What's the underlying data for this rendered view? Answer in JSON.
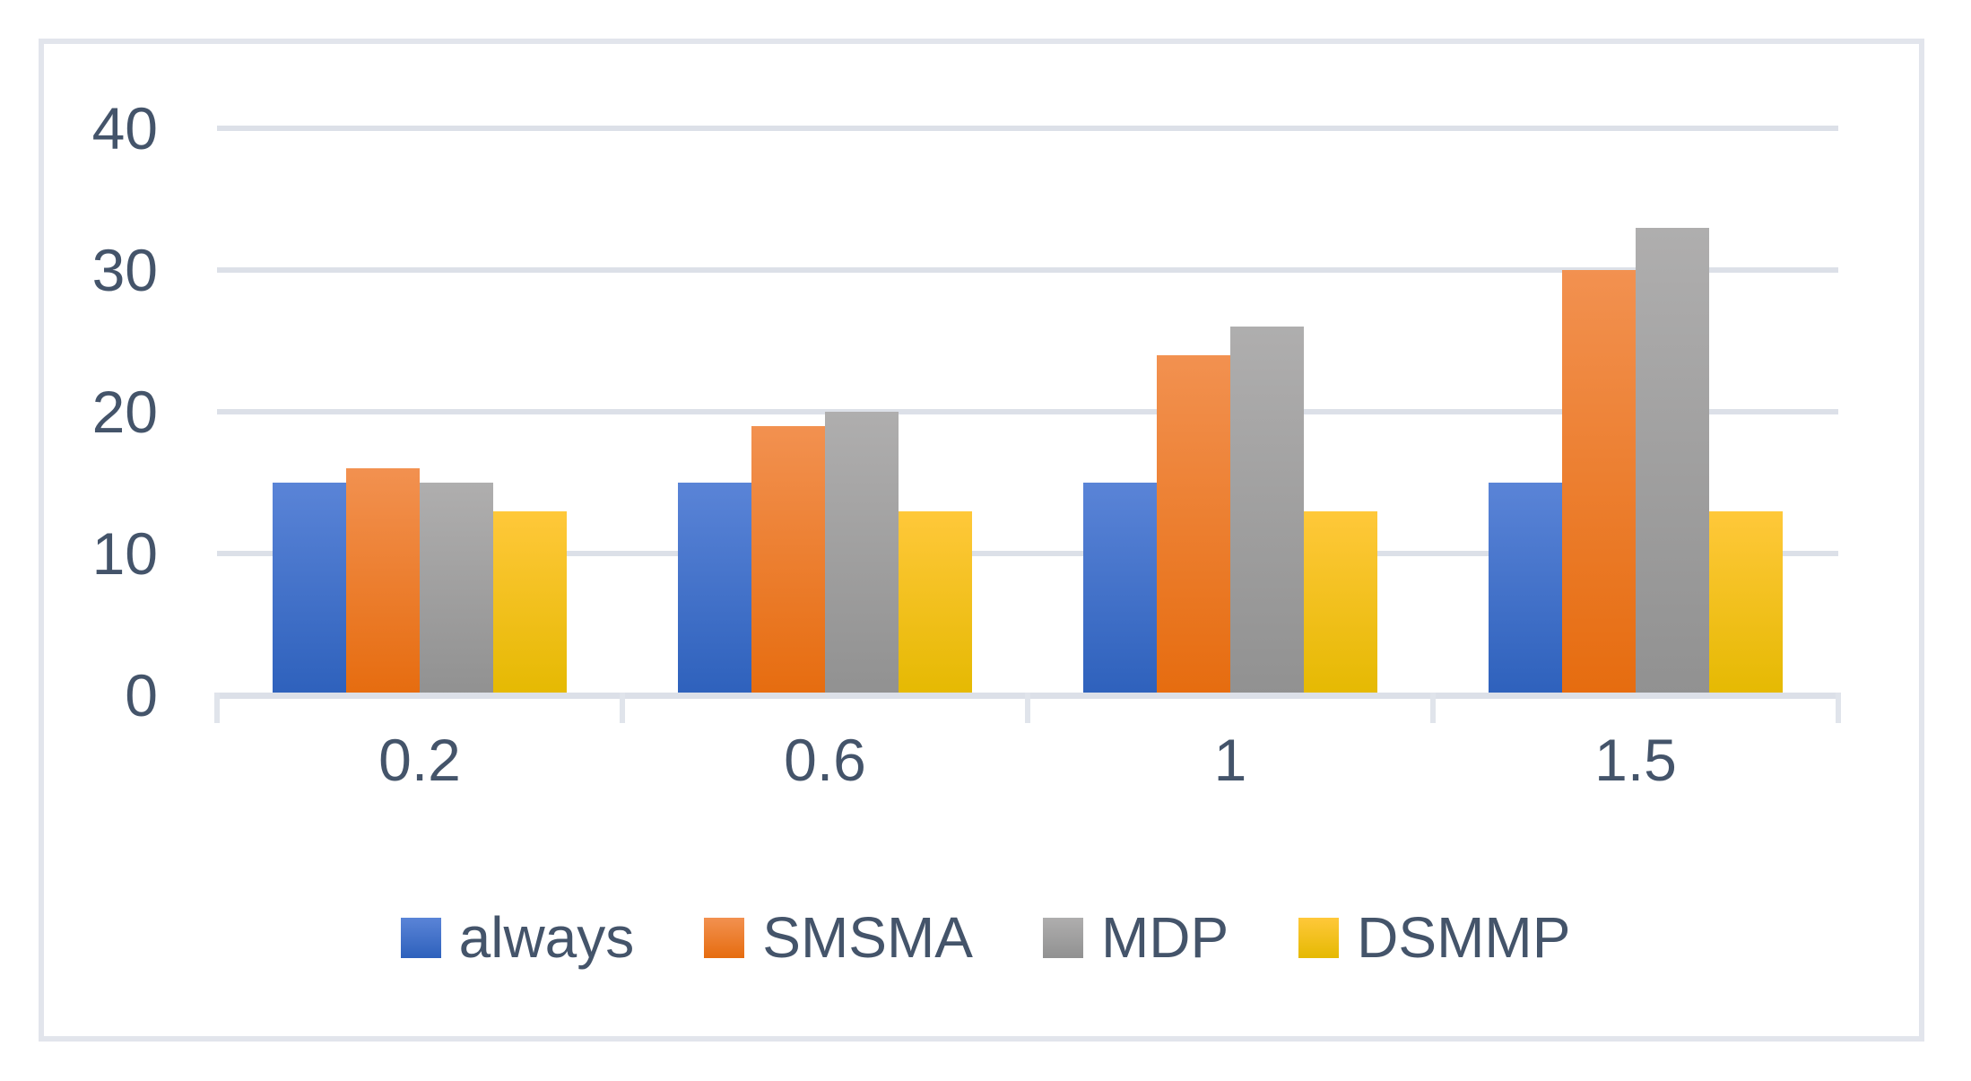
{
  "chart_data": {
    "type": "bar",
    "title": "",
    "xlabel": "",
    "ylabel": "",
    "categories": [
      "0.2",
      "0.6",
      "1",
      "1.5"
    ],
    "series": [
      {
        "name": "always",
        "color_top": "#5A84D7",
        "color_bottom": "#2E61BC",
        "values": [
          15,
          15,
          15,
          15
        ]
      },
      {
        "name": "SMSMA",
        "color_top": "#F29150",
        "color_bottom": "#E66C0F",
        "values": [
          16,
          19,
          24,
          30
        ]
      },
      {
        "name": "MDP",
        "color_top": "#AFAEAE",
        "color_bottom": "#919191",
        "values": [
          15,
          20,
          26,
          33
        ]
      },
      {
        "name": "DSMMP",
        "color_top": "#FFC83A",
        "color_bottom": "#E5B902",
        "values": [
          13,
          13,
          13,
          13
        ]
      }
    ],
    "y_axis": {
      "min": 0,
      "max": 40,
      "tick_interval": 10,
      "tick_labels": [
        "0",
        "10",
        "20",
        "30",
        "40"
      ]
    },
    "x_tick_labels": [
      "0.2",
      "0.6",
      "1",
      "1.5"
    ],
    "legend": {
      "position": "bottom",
      "entries": [
        "always",
        "SMSMA",
        "MDP",
        "DSMMP"
      ]
    },
    "grid": true,
    "ylim": [
      0,
      40
    ]
  },
  "colors": {
    "text": "#44546A",
    "gridline": "#DCE0E8",
    "frame_border": "#E2E5EC",
    "background": "#FFFFFF"
  }
}
